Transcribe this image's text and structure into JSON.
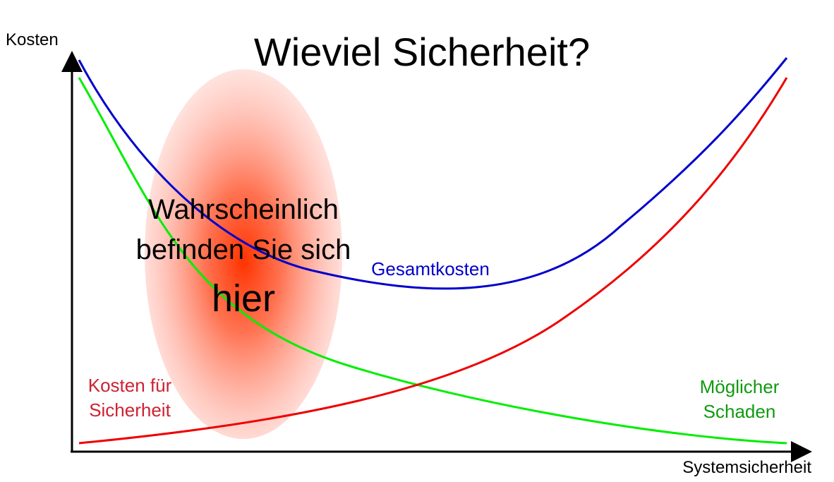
{
  "title": "Wieviel Sicherheit?",
  "axes": {
    "y_label": "Kosten",
    "x_label": "Systemsicherheit"
  },
  "callout": {
    "line1": "Wahrscheinlich",
    "line2": "befinden Sie sich",
    "line3": "hier"
  },
  "curves": {
    "total": {
      "label": "Gesamtkosten",
      "color": "#0000cc"
    },
    "security_cost": {
      "label_line1": "Kosten für",
      "label_line2": "Sicherheit",
      "color": "#ee0000",
      "label_color": "#cc2233"
    },
    "damage": {
      "label_line1": "Möglicher",
      "label_line2": "Schaden",
      "color": "#00ee00",
      "label_color": "#119911"
    }
  },
  "colors": {
    "highlight_center": "#ff3300",
    "axis": "#000000"
  }
}
